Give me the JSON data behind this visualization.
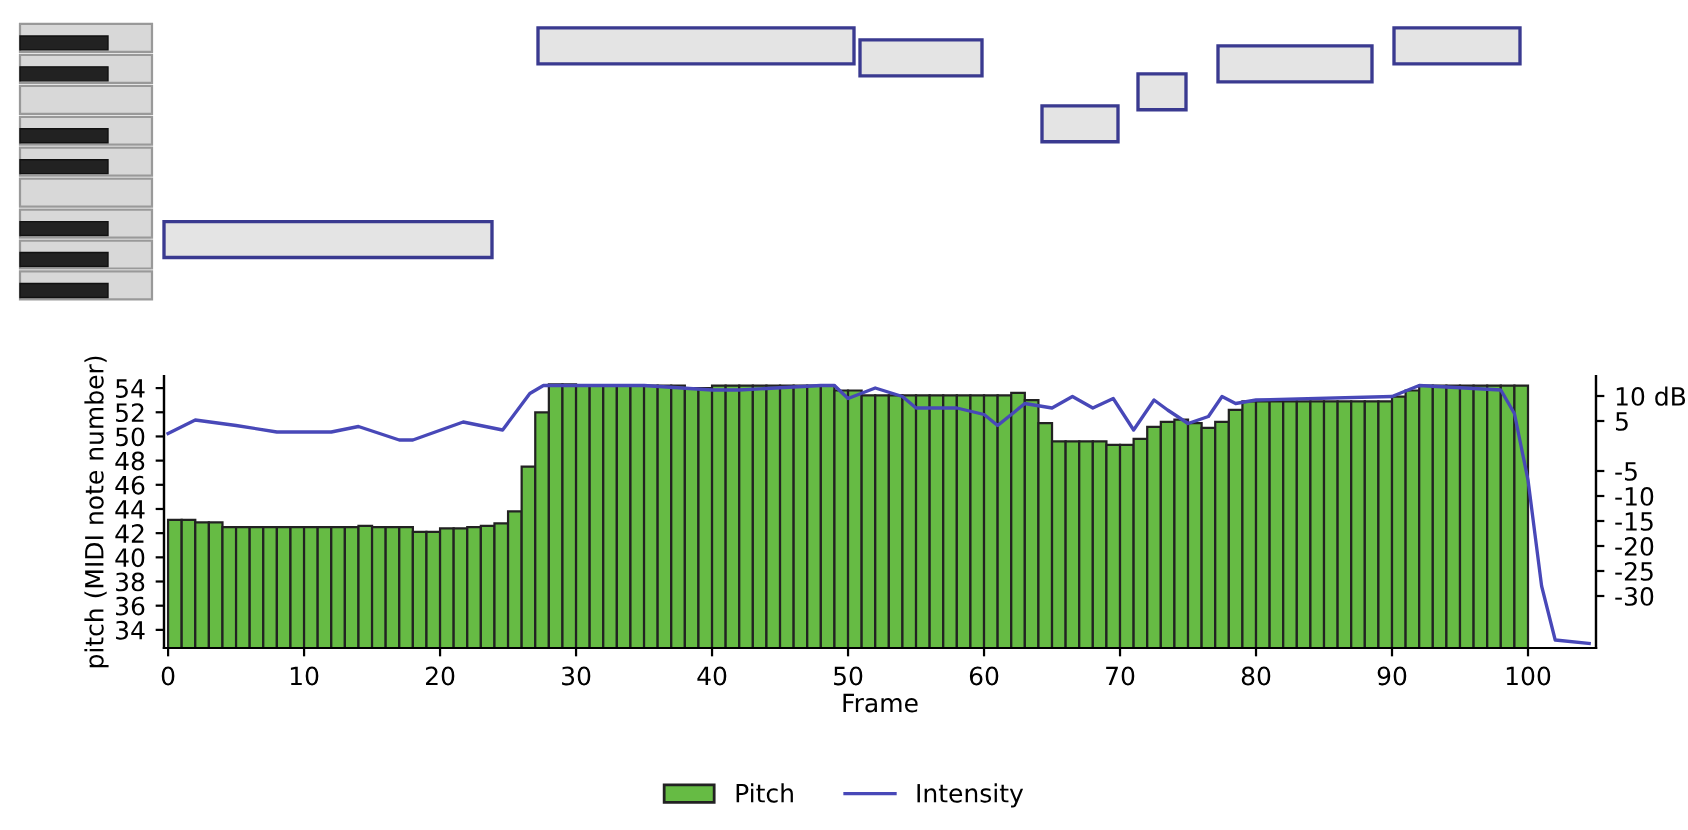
{
  "chart_data": {
    "type": "bar",
    "xlabel": "Frame",
    "ylabel": "pitch (MIDI note number)",
    "xlim": [
      -0.3,
      105
    ],
    "xticks": [
      0,
      10,
      20,
      30,
      40,
      50,
      60,
      70,
      80,
      90,
      100
    ],
    "ylim": [
      32.5,
      55
    ],
    "yticks": [
      34,
      36,
      38,
      40,
      42,
      44,
      46,
      48,
      50,
      52,
      54
    ],
    "y2lim": [
      -40.4,
      14
    ],
    "y2ticks": [
      {
        "value": 10,
        "label": "10 dB"
      },
      5,
      -5,
      -10,
      -15,
      -20,
      -25,
      -30
    ],
    "legend": "bottom",
    "grid": false,
    "series": [
      {
        "name": "Pitch",
        "color": "#66bb44",
        "x": [
          0,
          1,
          2,
          3,
          4,
          5,
          6,
          7,
          8,
          9,
          10,
          11,
          12,
          13,
          14,
          15,
          16,
          17,
          18,
          19,
          20,
          21,
          22,
          23,
          24,
          25,
          26,
          27,
          28,
          29,
          30,
          31,
          32,
          33,
          34,
          35,
          36,
          37,
          38,
          39,
          40,
          41,
          42,
          43,
          44,
          45,
          46,
          47,
          48,
          49,
          50,
          51,
          52,
          53,
          54,
          55,
          56,
          57,
          58,
          59,
          60,
          61,
          62,
          63,
          64,
          65,
          66,
          67,
          68,
          69,
          70,
          71,
          72,
          73,
          74,
          75,
          76,
          77,
          78,
          79,
          80,
          81,
          82,
          83,
          84,
          85,
          86,
          87,
          88,
          89,
          90,
          91,
          92,
          93,
          94,
          95,
          96,
          97,
          98,
          99
        ],
        "values": [
          43.1,
          43.1,
          42.9,
          42.9,
          42.5,
          42.5,
          42.5,
          42.5,
          42.5,
          42.5,
          42.5,
          42.5,
          42.5,
          42.5,
          42.6,
          42.5,
          42.5,
          42.5,
          42.1,
          42.1,
          42.4,
          42.4,
          42.5,
          42.6,
          42.8,
          43.8,
          47.5,
          52,
          54.3,
          54.3,
          54.2,
          54.2,
          54.2,
          54.2,
          54.2,
          54.2,
          54.2,
          54.2,
          54,
          54,
          54.2,
          54.2,
          54.2,
          54.2,
          54.2,
          54.2,
          54.2,
          54.2,
          54.2,
          53.8,
          53.8,
          53.4,
          53.4,
          53.4,
          53.4,
          53.4,
          53.4,
          53.4,
          53.4,
          53.4,
          53.4,
          53.4,
          53.6,
          53,
          51.1,
          49.6,
          49.6,
          49.6,
          49.6,
          49.3,
          49.3,
          49.8,
          50.8,
          51.2,
          51.4,
          51.1,
          50.7,
          51.2,
          52.2,
          52.9,
          52.9,
          52.9,
          52.9,
          52.9,
          52.9,
          52.9,
          52.9,
          52.9,
          52.9,
          52.9,
          53.3,
          53.8,
          54.2,
          54.2,
          54.2,
          54.2,
          54.2,
          54.2,
          54.2,
          54.2
        ]
      },
      {
        "name": "Intensity",
        "type": "line",
        "axis": "y2",
        "color": "#4848b8",
        "x": [
          0,
          2,
          5,
          8,
          12,
          14,
          17,
          18,
          21.7,
          24.6,
          26.6,
          27.6,
          29,
          35,
          40,
          42,
          48,
          49,
          50,
          52,
          54,
          55,
          58,
          60,
          61,
          63,
          65,
          66.5,
          68,
          69.5,
          71,
          72.5,
          73.5,
          75,
          76.5,
          77.5,
          78.5,
          80,
          90,
          92,
          98,
          99,
          100,
          101,
          102,
          104.5
        ],
        "values": [
          2.5,
          5.2,
          4.1,
          2.8,
          2.8,
          3.9,
          1.2,
          1.2,
          4.8,
          3.2,
          10.5,
          12.1,
          12.1,
          12.1,
          11.2,
          11.2,
          12.1,
          12.1,
          9.5,
          11.6,
          9.9,
          7.6,
          7.6,
          6.3,
          4.1,
          8.5,
          7.6,
          9.9,
          7.6,
          9.5,
          3.2,
          9.2,
          7.2,
          4.5,
          5.9,
          9.9,
          8.5,
          9.2,
          9.9,
          12.1,
          11.2,
          6.5,
          -6.8,
          -28,
          -38.8,
          -39.5
        ]
      }
    ]
  }
}
